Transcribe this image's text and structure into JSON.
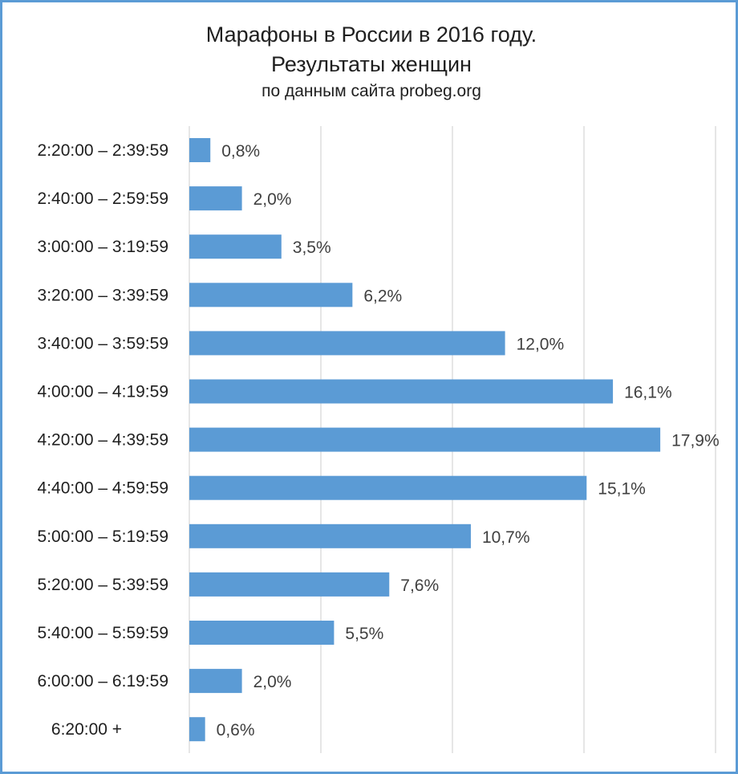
{
  "chart_data": {
    "type": "bar",
    "orientation": "horizontal",
    "title_line1": "Марафоны в России в 2016 году.",
    "title_line2": "Результаты женщин",
    "subtitle": "по данным сайта probeg.org",
    "categories": [
      "2:20:00 – 2:39:59",
      "2:40:00 – 2:59:59",
      "3:00:00 – 3:19:59",
      "3:20:00 – 3:39:59",
      "3:40:00 – 3:59:59",
      "4:00:00 – 4:19:59",
      "4:20:00 – 4:39:59",
      "4:40:00 – 4:59:59",
      "5:00:00 – 5:19:59",
      "5:20:00 – 5:39:59",
      "5:40:00 – 5:59:59",
      "6:00:00 – 6:19:59",
      "6:20:00 +"
    ],
    "values": [
      0.8,
      2.0,
      3.5,
      6.2,
      12.0,
      16.1,
      17.9,
      15.1,
      10.7,
      7.6,
      5.5,
      2.0,
      0.6
    ],
    "data_labels": [
      "0,8%",
      "2,0%",
      "3,5%",
      "6,2%",
      "12,0%",
      "16,1%",
      "17,9%",
      "15,1%",
      "10,7%",
      "7,6%",
      "5,5%",
      "2,0%",
      "0,6%"
    ],
    "xlim": [
      0,
      20
    ],
    "x_gridlines": [
      0,
      5,
      10,
      15,
      20
    ],
    "grid": true,
    "legend": "none",
    "colors": {
      "bar": "#5b9bd5",
      "gridline": "#d9d9d9",
      "border": "#5b9bd5"
    }
  }
}
